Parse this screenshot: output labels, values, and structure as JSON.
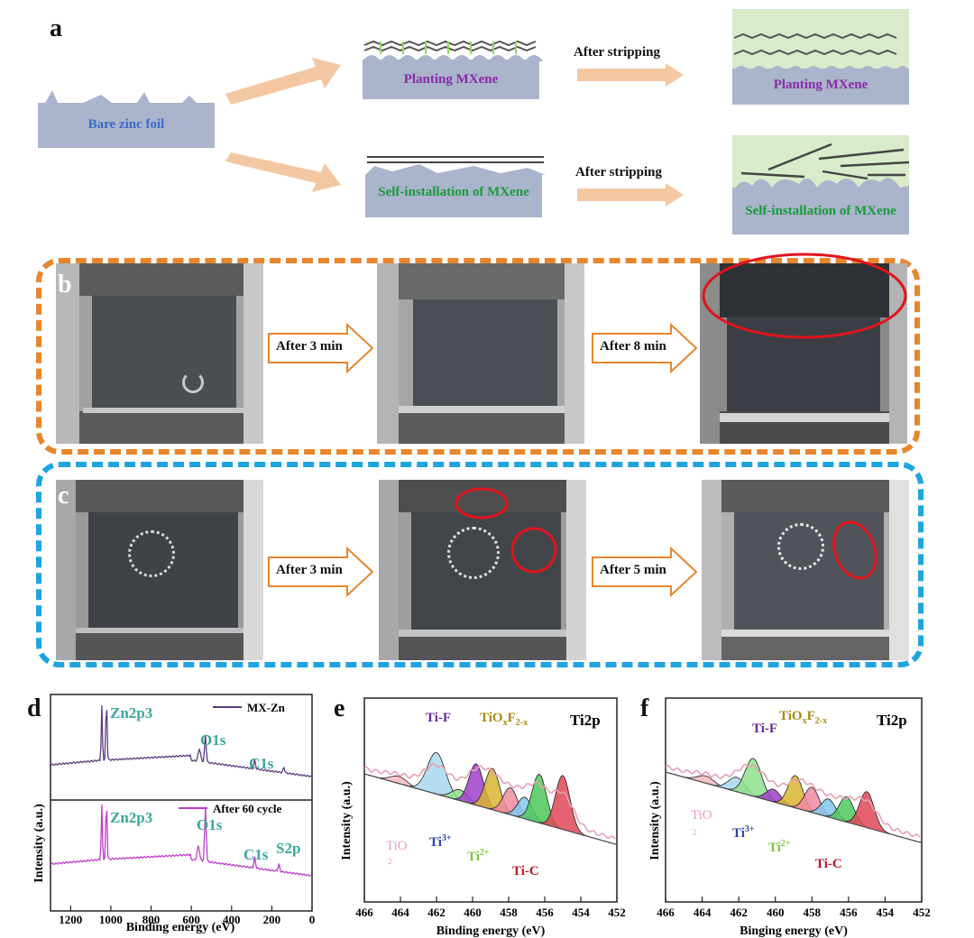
{
  "panel_a": {
    "label": "a",
    "bare": "Bare zinc foil",
    "planting_left": "Planting MXene",
    "planting_right": "Planting MXene",
    "self_left": "Self-installation of MXene",
    "self_right": "Self-installation of MXene",
    "arrow_top": "After stripping",
    "arrow_bottom": "After stripping",
    "colors": {
      "zinc": "#aab4cc",
      "planting_text": "#8a2aa8",
      "self_text": "#1a9a3a",
      "electrolyte": "#d9ebc9",
      "arrow": "#f4c7a3"
    }
  },
  "panel_b": {
    "label": "b",
    "arrow1": "After 3 min",
    "arrow2": "After 8 min",
    "border_color": "#e8862e"
  },
  "panel_c": {
    "label": "c",
    "arrow1": "After 3 min",
    "arrow2": "After 5 min",
    "border_color": "#1ea4e0"
  },
  "panel_d": {
    "label": "d",
    "ylabel": "Intensity (a.u.)",
    "xlabel": "Binding energy (eV)",
    "xticks": [
      "1200",
      "1000",
      "800",
      "600",
      "400",
      "200",
      "0"
    ],
    "top": {
      "legend": "MX-Zn",
      "peaks": [
        "Zn2p3",
        "O1s",
        "C1s"
      ],
      "color": "#5a3c7e"
    },
    "bottom": {
      "legend": "After 60 cycle",
      "peaks": [
        "Zn2p3",
        "O1s",
        "C1s",
        "S2p"
      ],
      "color": "#c03cc8"
    }
  },
  "panel_e": {
    "label": "e",
    "ylabel": "Intensity (a.u.)",
    "xlabel": "Binding energy (eV)",
    "title": "Ti2p",
    "xticks": [
      "466",
      "464",
      "462",
      "460",
      "458",
      "456",
      "454",
      "452"
    ],
    "annot": {
      "tif": "Ti-F",
      "tio_xf": "TiO",
      "tio": "TiO",
      "sub2": "2",
      "ti3": "Ti",
      "ti3sup": "3+",
      "ti2": "Ti",
      "ti2sup": "2+",
      "tic": "Ti-C",
      "xsub": "x",
      "fsub": "2-x",
      "f": "F"
    }
  },
  "panel_f": {
    "label": "f",
    "ylabel": "Intensity (a.u.)",
    "xlabel": "Binging energy (eV)",
    "title": "Ti2p",
    "xticks": [
      "466",
      "464",
      "462",
      "460",
      "458",
      "456",
      "454",
      "452"
    ],
    "annot": {
      "tif": "Ti-F",
      "tio_xf": "TiO",
      "tio": "TiO",
      "sub2": "2",
      "ti3": "Ti",
      "ti3sup": "3+",
      "ti2": "Ti",
      "ti2sup": "2+",
      "tic": "Ti-C",
      "xsub": "x",
      "fsub": "2-x",
      "f": "F"
    }
  },
  "chart_data": [
    {
      "type": "line",
      "title": "",
      "xlabel": "Binding energy (eV)",
      "ylabel": "Intensity (a.u.)",
      "xlim": [
        1300,
        0
      ],
      "series": [
        {
          "name": "MX-Zn"
        },
        {
          "name": "After 60 cycle"
        }
      ]
    },
    {
      "type": "area",
      "title": "Ti2p",
      "xlabel": "Binding energy (eV)",
      "ylabel": "Intensity (a.u.)",
      "xlim": [
        466,
        452
      ],
      "peaks_eV": [
        464.1,
        462.0,
        460.7,
        459.8,
        458.9,
        457.9,
        457.1,
        456.3,
        455.0
      ]
    },
    {
      "type": "area",
      "title": "Ti2p",
      "xlabel": "Binging energy (eV)",
      "ylabel": "Intensity (a.u.)",
      "xlim": [
        466,
        452
      ],
      "peaks_eV": [
        463.8,
        462.1,
        461.2,
        460.1,
        458.9,
        458.0,
        457.1,
        456.1,
        455.0
      ]
    }
  ]
}
